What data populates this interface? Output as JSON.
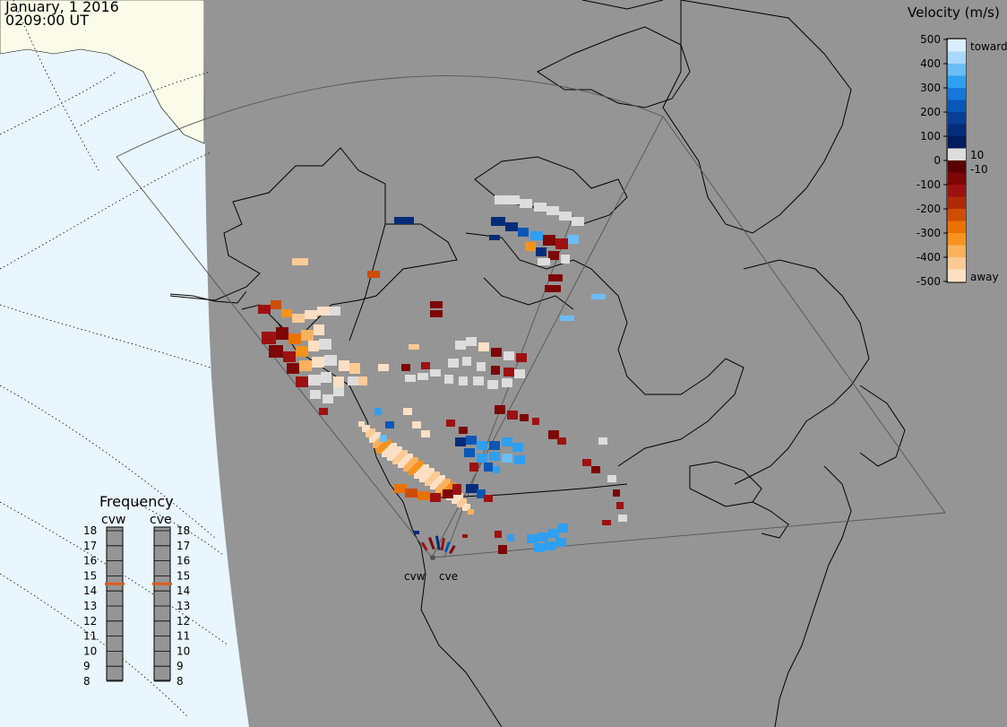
{
  "header": {
    "date": "January, 1 2016",
    "time": "0209:00 UT"
  },
  "legend": {
    "title": "Velocity (m/s)",
    "ticks": [
      "500",
      "400",
      "300",
      "200",
      "100",
      "0",
      "-100",
      "-200",
      "-300",
      "-400",
      "-500"
    ],
    "toward_label": "toward",
    "away_label": "away",
    "small_pos": "10",
    "small_neg": "-10",
    "colors": [
      "#d8eeff",
      "#a8d8fb",
      "#6bbdf5",
      "#2f9ff0",
      "#1578da",
      "#0a57b7",
      "#063f94",
      "#052c79",
      "#031b5c",
      "#dddddd",
      "#5a0000",
      "#7d0606",
      "#9d1111",
      "#b02a08",
      "#cf4d00",
      "#ea7200",
      "#f7921c",
      "#fab15d",
      "#fccb95",
      "#fde0c4"
    ]
  },
  "frequency": {
    "title": "Frequency",
    "radars": [
      {
        "name": "cvw",
        "selected": 15
      },
      {
        "name": "cve",
        "selected": 15
      }
    ],
    "scale": [
      "18",
      "17",
      "16",
      "15",
      "14",
      "13",
      "12",
      "11",
      "10",
      "9",
      "8"
    ],
    "marker_color": "#e05a1e"
  },
  "radars": [
    {
      "name": "cvw"
    },
    {
      "name": "cve"
    }
  ]
}
